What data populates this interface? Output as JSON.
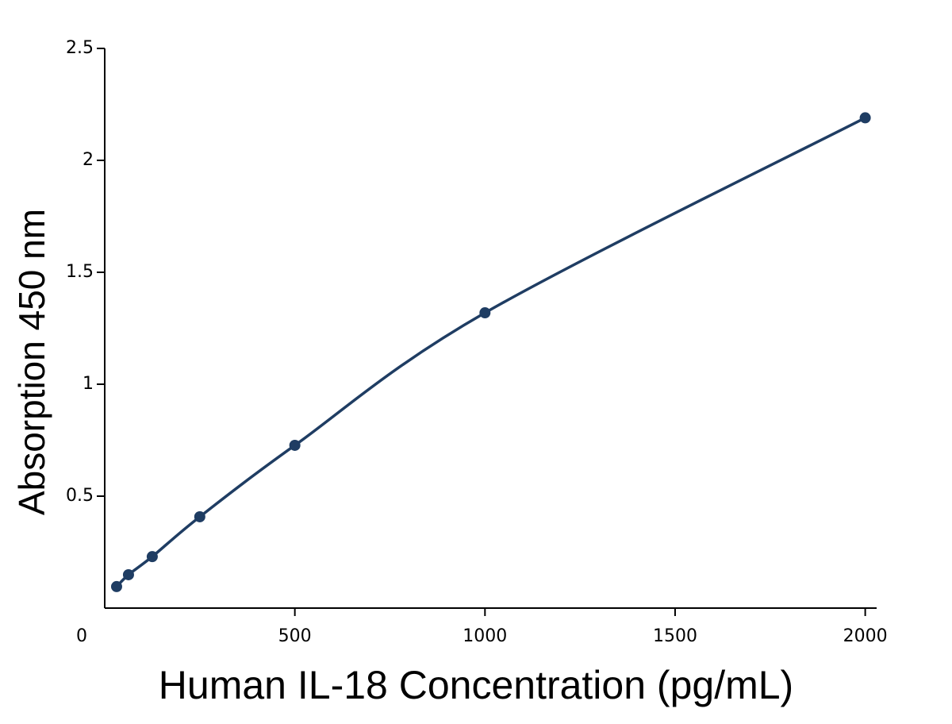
{
  "chart_data": {
    "type": "line",
    "x_label": "Human IL-18 Concentration (pg/mL)",
    "y_label": "Absorption 450 nm",
    "x": [
      31.25,
      62.5,
      125,
      250,
      500,
      1000,
      2000
    ],
    "series": [
      {
        "color": "#1f3d63",
        "values": [
          0.096,
          0.149,
          0.23,
          0.408,
          0.727,
          1.319,
          2.19
        ]
      }
    ],
    "xlim": [
      0,
      2030
    ],
    "xticks": [
      0,
      500,
      1000,
      1500,
      2000
    ],
    "ylim": [
      0,
      2.5
    ],
    "yticks": [
      0.5,
      1,
      1.5,
      2,
      2.5
    ]
  }
}
